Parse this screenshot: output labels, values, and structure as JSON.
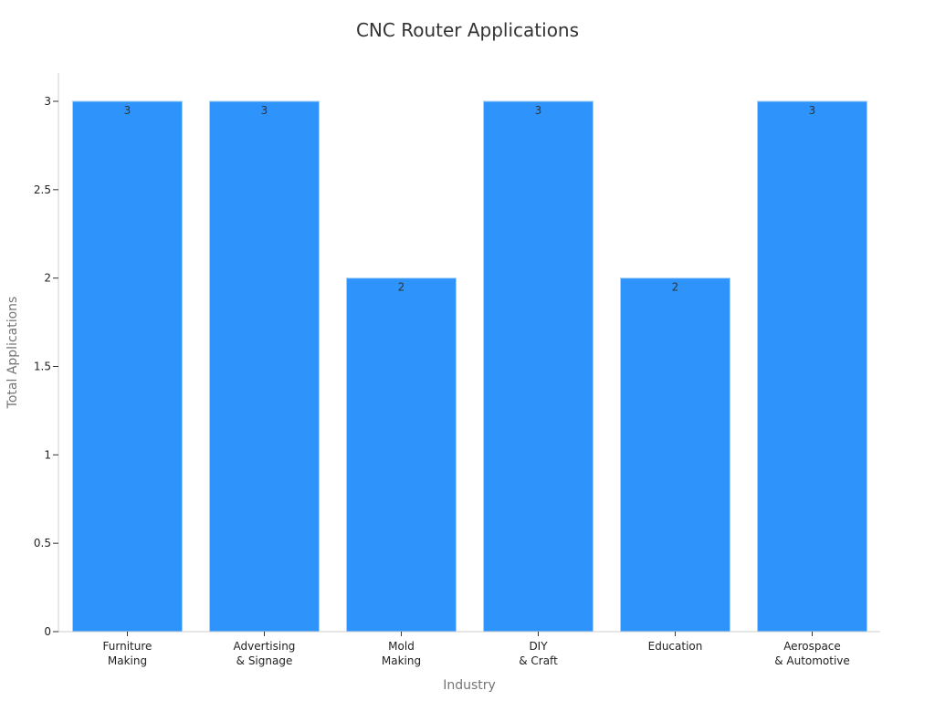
{
  "chart_data": {
    "type": "bar",
    "title": "CNC Router Applications",
    "xlabel": "Industry",
    "ylabel": "Total Applications",
    "categories": [
      [
        "Furniture",
        "Making"
      ],
      [
        "Advertising",
        "& Signage"
      ],
      [
        "Mold",
        "Making"
      ],
      [
        "DIY",
        "& Craft"
      ],
      [
        "Education"
      ],
      [
        "Aerospace",
        "& Automotive"
      ]
    ],
    "values": [
      3,
      3,
      2,
      3,
      2,
      3
    ],
    "data_labels": [
      "3",
      "3",
      "2",
      "3",
      "2",
      "3"
    ],
    "ylim": [
      0,
      3
    ],
    "yticks": [
      0,
      0.5,
      1,
      1.5,
      2,
      2.5,
      3
    ],
    "ytick_labels": [
      "0",
      "0.5",
      "1",
      "1.5",
      "2",
      "2.5",
      "3"
    ],
    "grid": false,
    "legend": "none",
    "colors": {
      "bar": "#2e93fa",
      "bar_edge": "#a6d0f7"
    }
  }
}
